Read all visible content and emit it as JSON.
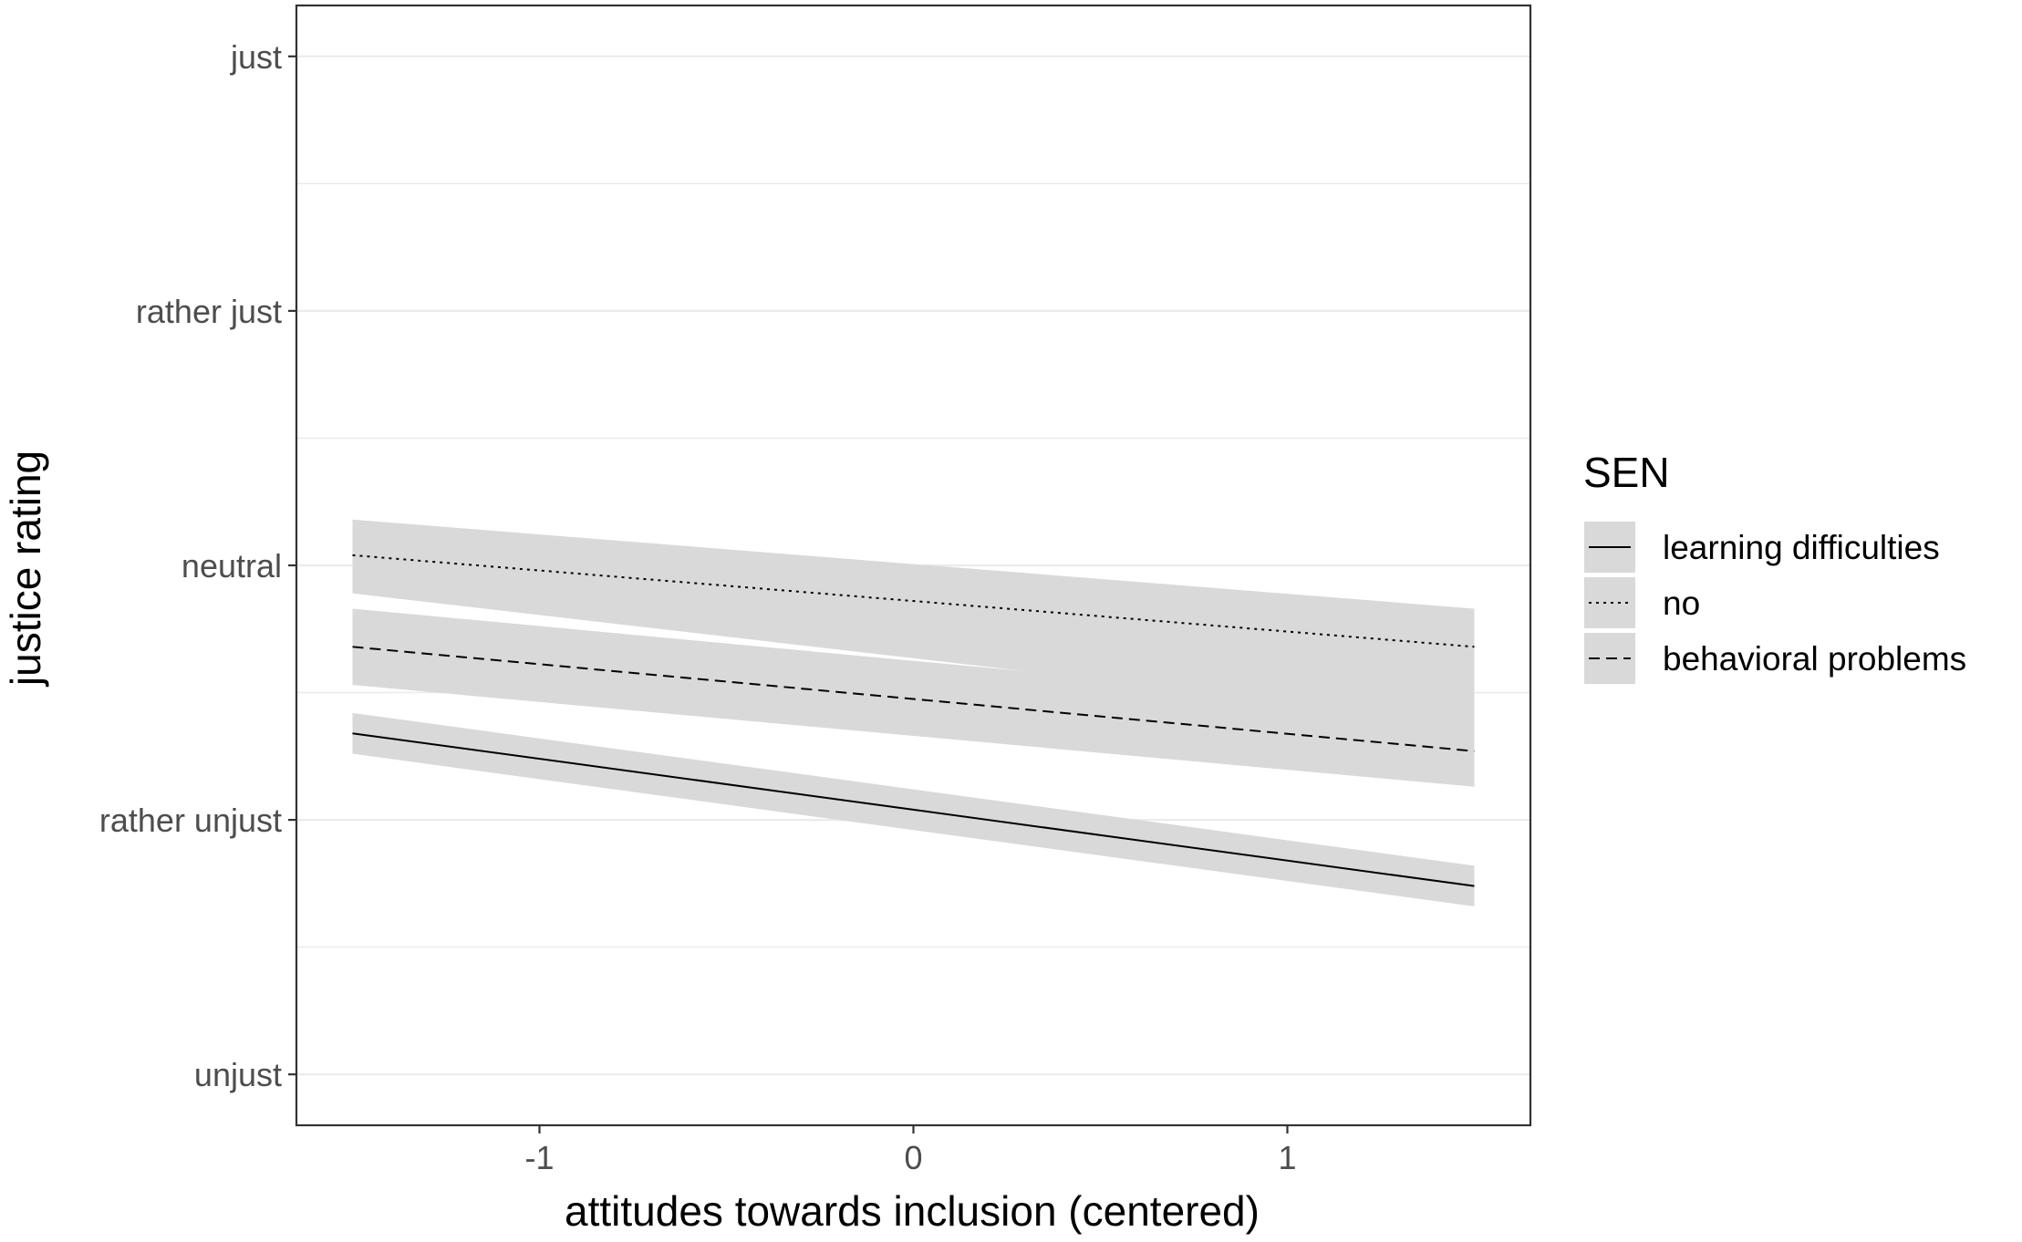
{
  "chart_data": {
    "type": "line",
    "xlabel": "attitudes towards inclusion (centered)",
    "ylabel": "justice rating",
    "xlim": [
      -1.65,
      1.65
    ],
    "ylim": [
      0.8,
      5.2
    ],
    "x_ticks": [
      -1,
      0,
      1
    ],
    "x_tick_labels": [
      "-1",
      "0",
      "1"
    ],
    "y_ticks": [
      1,
      2,
      3,
      4,
      5
    ],
    "y_tick_labels": [
      "unjust",
      "rather unjust",
      "neutral",
      "rather just",
      "just"
    ],
    "grid": "horizontal major and minor",
    "legend": {
      "title": "SEN",
      "position": "right",
      "entries": [
        "learning difficulties",
        "no",
        "behavioral problems"
      ]
    },
    "series": [
      {
        "name": "learning difficulties",
        "linestyle": "solid",
        "x": [
          -1.5,
          1.5
        ],
        "y": [
          2.34,
          1.74
        ],
        "ci_lower": [
          2.26,
          1.66
        ],
        "ci_upper": [
          2.42,
          1.82
        ]
      },
      {
        "name": "no",
        "linestyle": "dotted",
        "x": [
          -1.5,
          1.5
        ],
        "y": [
          3.04,
          2.68
        ],
        "ci_lower": [
          2.89,
          2.38
        ],
        "ci_upper": [
          3.18,
          2.83
        ]
      },
      {
        "name": "behavioral problems",
        "linestyle": "dashed",
        "x": [
          -1.5,
          1.5
        ],
        "y": [
          2.68,
          2.27
        ],
        "ci_lower": [
          2.53,
          2.13
        ],
        "ci_upper": [
          2.83,
          2.42
        ]
      }
    ],
    "colors": {
      "line": "#000000",
      "ribbon": "#d9d9d9",
      "grid": "#ebebeb",
      "panel_border": "#333333",
      "tick_label": "#4d4d4d"
    }
  }
}
